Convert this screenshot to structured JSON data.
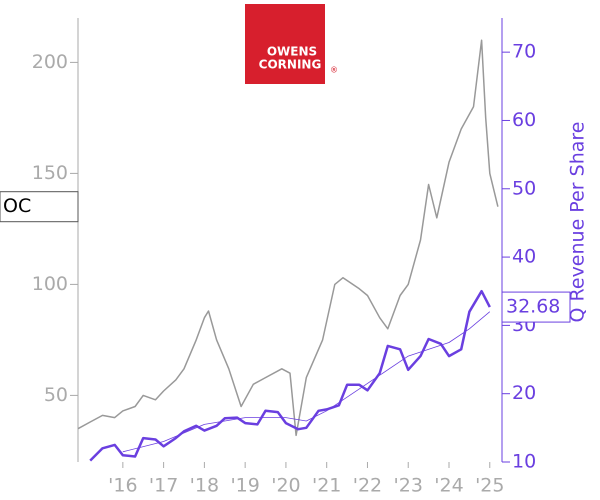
{
  "chart_data": {
    "type": "line",
    "logo": [
      "OWENS",
      "CORNING"
    ],
    "ticker": "OC",
    "y2_label": "Q Revenue Per Share",
    "last_value": 32.68,
    "xlim": [
      2014.9,
      2025.3
    ],
    "xticks": [
      {
        "value": 2016,
        "label": "'16"
      },
      {
        "value": 2017,
        "label": "'17"
      },
      {
        "value": 2018,
        "label": "'18"
      },
      {
        "value": 2019,
        "label": "'19"
      },
      {
        "value": 2020,
        "label": "'20"
      },
      {
        "value": 2021,
        "label": "'21"
      },
      {
        "value": 2022,
        "label": "'22"
      },
      {
        "value": 2023,
        "label": "'23"
      },
      {
        "value": 2024,
        "label": "'24"
      },
      {
        "value": 2025,
        "label": "'25"
      }
    ],
    "ylim": [
      20,
      220
    ],
    "yticks": [
      50,
      100,
      150,
      200
    ],
    "y2lim": [
      10,
      75
    ],
    "y2ticks": [
      10,
      20,
      30,
      40,
      50,
      60,
      70
    ],
    "series": [
      {
        "color": "#999999",
        "line_width": 1.5,
        "x": [
          2014.9,
          2015.2,
          2015.5,
          2015.8,
          2016.0,
          2016.3,
          2016.5,
          2016.8,
          2017.0,
          2017.3,
          2017.5,
          2017.8,
          2018.0,
          2018.1,
          2018.3,
          2018.6,
          2018.9,
          2019.2,
          2019.5,
          2019.9,
          2020.1,
          2020.25,
          2020.5,
          2020.9,
          2021.2,
          2021.4,
          2021.8,
          2022.0,
          2022.3,
          2022.5,
          2022.8,
          2023.0,
          2023.3,
          2023.5,
          2023.7,
          2024.0,
          2024.3,
          2024.6,
          2024.8,
          2024.9,
          2025.0,
          2025.2
        ],
        "values": [
          35,
          38,
          41,
          40,
          43,
          45,
          50,
          48,
          52,
          57,
          62,
          75,
          85,
          88,
          75,
          62,
          45,
          55,
          58,
          62,
          60,
          32,
          58,
          75,
          100,
          103,
          98,
          95,
          85,
          80,
          95,
          100,
          120,
          145,
          130,
          155,
          170,
          180,
          210,
          175,
          150,
          135
        ]
      },
      {
        "color": "#6a3fe0",
        "line_width": 2.5,
        "axis": "y2",
        "x": [
          2015.2,
          2015.5,
          2015.8,
          2016.0,
          2016.3,
          2016.5,
          2016.8,
          2017.0,
          2017.3,
          2017.5,
          2017.8,
          2018.0,
          2018.3,
          2018.5,
          2018.8,
          2019.0,
          2019.3,
          2019.5,
          2019.8,
          2020.0,
          2020.3,
          2020.5,
          2020.8,
          2021.0,
          2021.3,
          2021.5,
          2021.8,
          2022.0,
          2022.3,
          2022.5,
          2022.8,
          2023.0,
          2023.3,
          2023.5,
          2023.8,
          2024.0,
          2024.3,
          2024.5,
          2024.8,
          2025.0
        ],
        "values": [
          10.2,
          12,
          12.5,
          11,
          10.8,
          13.5,
          13.3,
          12.3,
          13.5,
          14.5,
          15.3,
          14.6,
          15.3,
          16.4,
          16.5,
          15.7,
          15.5,
          17.5,
          17.3,
          15.7,
          14.8,
          15,
          17.5,
          17.7,
          18.3,
          21.3,
          21.3,
          20.5,
          23,
          27,
          26.5,
          23.5,
          25.5,
          28,
          27.3,
          25.5,
          26.5,
          32,
          35,
          32.68
        ]
      },
      {
        "color": "#6a3fe0",
        "line_width": 0.8,
        "axis": "y2",
        "x": [
          2016.0,
          2017.0,
          2018.0,
          2019.0,
          2020.0,
          2020.5,
          2021.0,
          2022.0,
          2023.0,
          2024.0,
          2024.5,
          2025.0
        ],
        "values": [
          11.5,
          13,
          15.5,
          16.5,
          16.5,
          16,
          17.5,
          21.5,
          25.5,
          27.5,
          29.5,
          32
        ]
      }
    ]
  }
}
